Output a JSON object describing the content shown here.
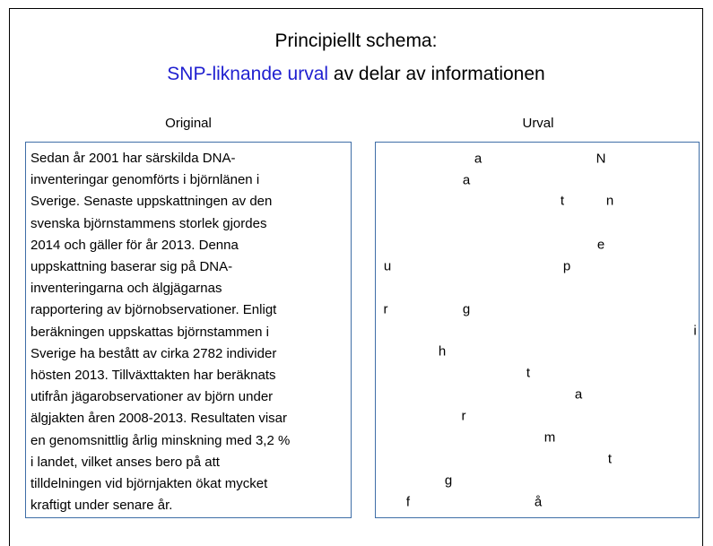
{
  "header": {
    "line1": "Principiellt schema:",
    "highlight": "SNP-liknande urval",
    "rest": " av delar av informationen"
  },
  "original": {
    "label": "Original",
    "lines": [
      "Sedan år 2001 har särskilda DNA-",
      "inventeringar genomförts i björnlänen i",
      "Sverige. Senaste uppskattningen av den",
      "svenska björnstammens storlek gjordes",
      "2014 och gäller för år 2013. Denna",
      "uppskattning baserar sig på DNA-",
      "inventeringarna och älgjägarnas",
      "rapportering av björnobservationer. Enligt",
      "beräkningen uppskattas björnstammen i",
      "Sverige ha bestått av cirka 2782 individer",
      "hösten 2013. Tillväxttakten har beräknats",
      "utifrån jägarobservationer av björn under",
      "älgjakten åren 2008-2013. Resultaten visar",
      "en genomsnittlig årlig minskning med 3,2 %",
      "i landet, vilket anses bero på att",
      "tilldelningen vid björnjakten ökat mycket",
      "kraftigt under senare år."
    ]
  },
  "selection": {
    "label": "Urval",
    "letters": [
      "a",
      "N",
      "a",
      "t",
      "n",
      "e",
      "u",
      "p",
      "r",
      "g",
      "i",
      "h",
      "t",
      "a",
      "r",
      "m",
      "t",
      "g",
      "f",
      "å"
    ]
  }
}
